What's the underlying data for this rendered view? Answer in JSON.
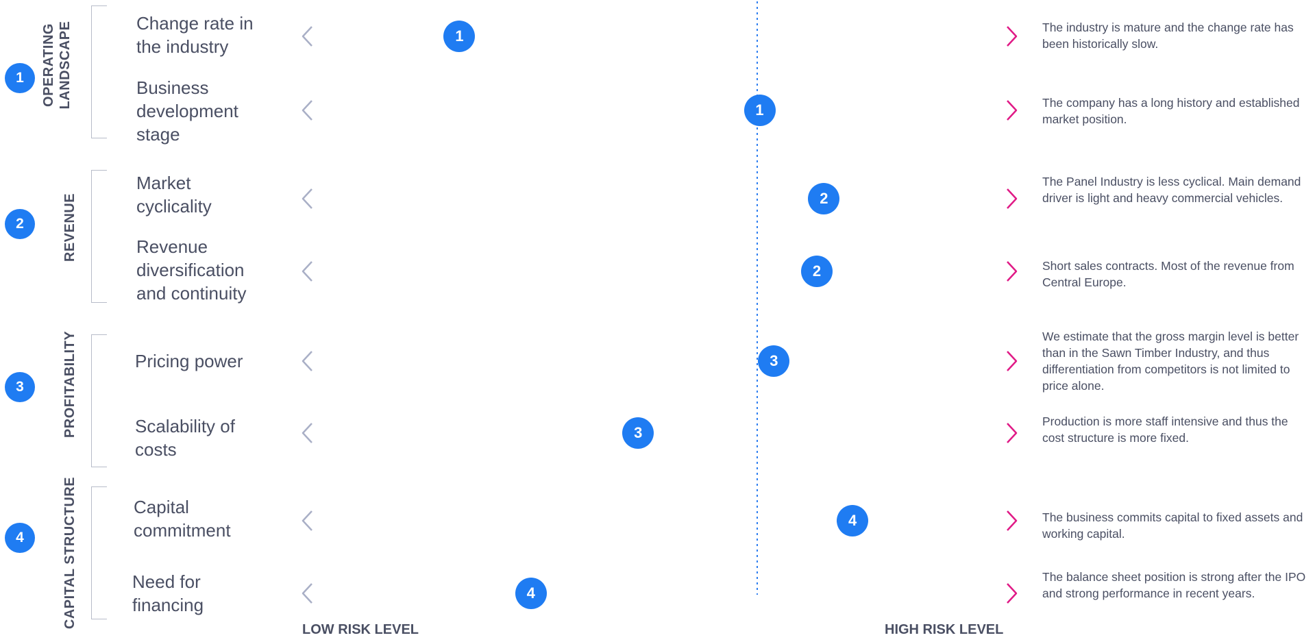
{
  "colors": {
    "badge": "#1f7cf2",
    "arrow_low": "#a9afc6",
    "arrow_high": "#e01a86",
    "divider": "#2e7ef0",
    "text": "#4a4f63"
  },
  "sections": [
    {
      "number": "1",
      "label_lines": [
        "OPERATING",
        "LANDSCAPE"
      ]
    },
    {
      "number": "2",
      "label_lines": [
        "REVENUE"
      ]
    },
    {
      "number": "3",
      "label_lines": [
        "PROFITABILITY"
      ]
    },
    {
      "number": "4",
      "label_lines": [
        "CAPITAL STRUCTURE"
      ]
    }
  ],
  "rows": [
    {
      "section": "1",
      "label": "Change rate in the industry",
      "risk": 0.22,
      "description": "The industry is mature and the change rate has been historically slow."
    },
    {
      "section": "1",
      "label": "Business development stage",
      "risk": 0.64,
      "description": "The company has a long history and established market position."
    },
    {
      "section": "2",
      "label": "Market cyclicality",
      "risk": 0.73,
      "description": "The Panel Industry is less cyclical. Main demand driver is light and heavy commercial vehicles."
    },
    {
      "section": "2",
      "label": "Revenue diversification and continuity",
      "risk": 0.72,
      "description": "Short sales contracts. Most of the revenue from Central Europe."
    },
    {
      "section": "3",
      "label": "Pricing power",
      "risk": 0.66,
      "description": "We estimate that the gross margin level is better than in the Sawn Timber Industry, and thus differentiation from competitors is not limited to price alone."
    },
    {
      "section": "3",
      "label": "Scalability of costs",
      "risk": 0.47,
      "description": "Production is more staff intensive and thus the cost structure is more fixed."
    },
    {
      "section": "4",
      "label": "Capital commitment",
      "risk": 0.77,
      "description": "The business commits capital to fixed assets and working capital."
    },
    {
      "section": "4",
      "label": "Need for financing",
      "risk": 0.32,
      "description": "The balance sheet position is strong after the IPO and strong performance in recent years."
    }
  ],
  "axis": {
    "low_label": "LOW RISK LEVEL",
    "high_label": "HIGH RISK LEVEL"
  }
}
